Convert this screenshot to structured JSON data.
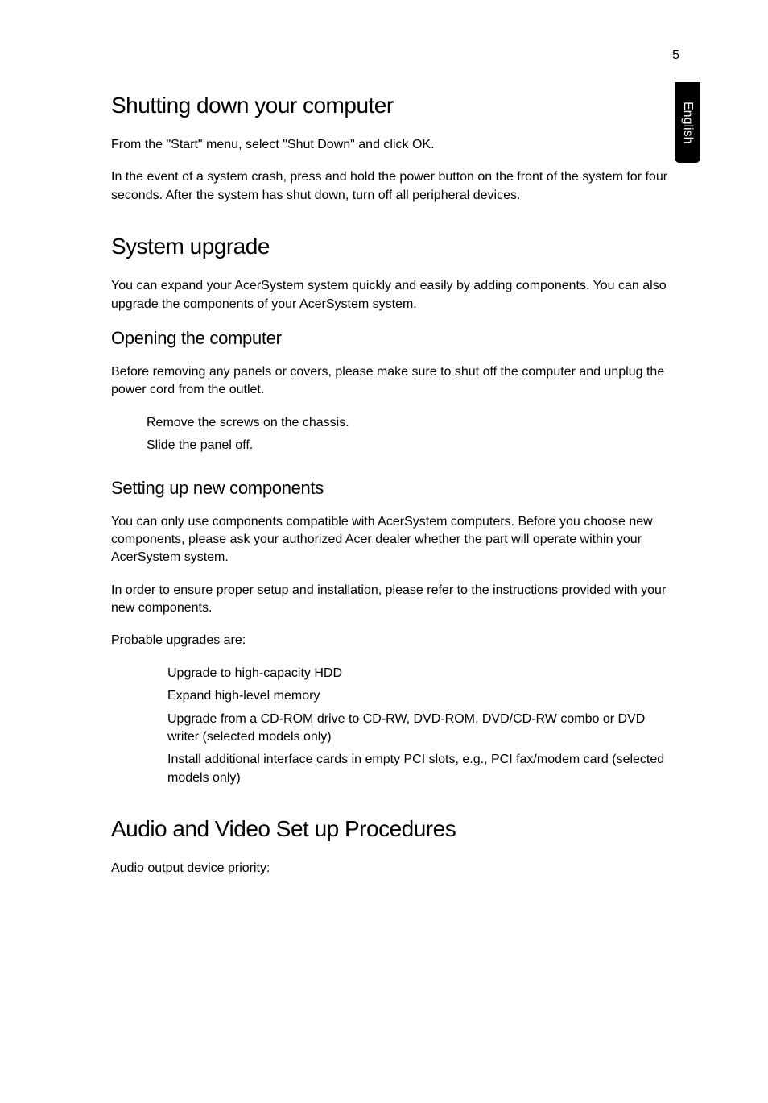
{
  "page_number": "5",
  "side_tab": "English",
  "sections": {
    "shutting_down": {
      "heading": "Shutting down your computer",
      "p1": "From the \"Start\" menu, select \"Shut Down\" and click OK.",
      "p2": "In the event of a system crash, press and hold the power button on the front of the system for four seconds. After the system has shut down, turn off all peripheral devices."
    },
    "system_upgrade": {
      "heading": "System upgrade",
      "p1": "You can expand your AcerSystem system quickly and easily by adding components. You can also upgrade the components of your AcerSystem system.",
      "opening": {
        "heading": "Opening the computer",
        "p1": "Before removing any panels or covers, please make sure to shut off the computer and unplug the power cord from the outlet.",
        "list": {
          "i0": "Remove the screws on the chassis.",
          "i1": "Slide the panel off."
        }
      },
      "setting_up": {
        "heading": "Setting up new components",
        "p1": "You can only use components compatible with AcerSystem computers. Before you choose new components, please ask your authorized Acer dealer whether the part will operate within your AcerSystem system.",
        "p2": "In order to ensure proper setup and installation, please refer to the instructions provided with your new components.",
        "p3": "Probable upgrades are:",
        "list": {
          "i0": "Upgrade to high-capacity HDD",
          "i1": "Expand high-level memory",
          "i2": "Upgrade from a CD-ROM drive to CD-RW, DVD-ROM, DVD/CD-RW combo or DVD writer (selected models only)",
          "i3": "Install additional interface cards in empty PCI slots, e.g., PCI fax/modem card (selected models only)"
        }
      }
    },
    "audio_video": {
      "heading": "Audio and Video Set up Procedures",
      "p1": "Audio output device priority:"
    }
  }
}
